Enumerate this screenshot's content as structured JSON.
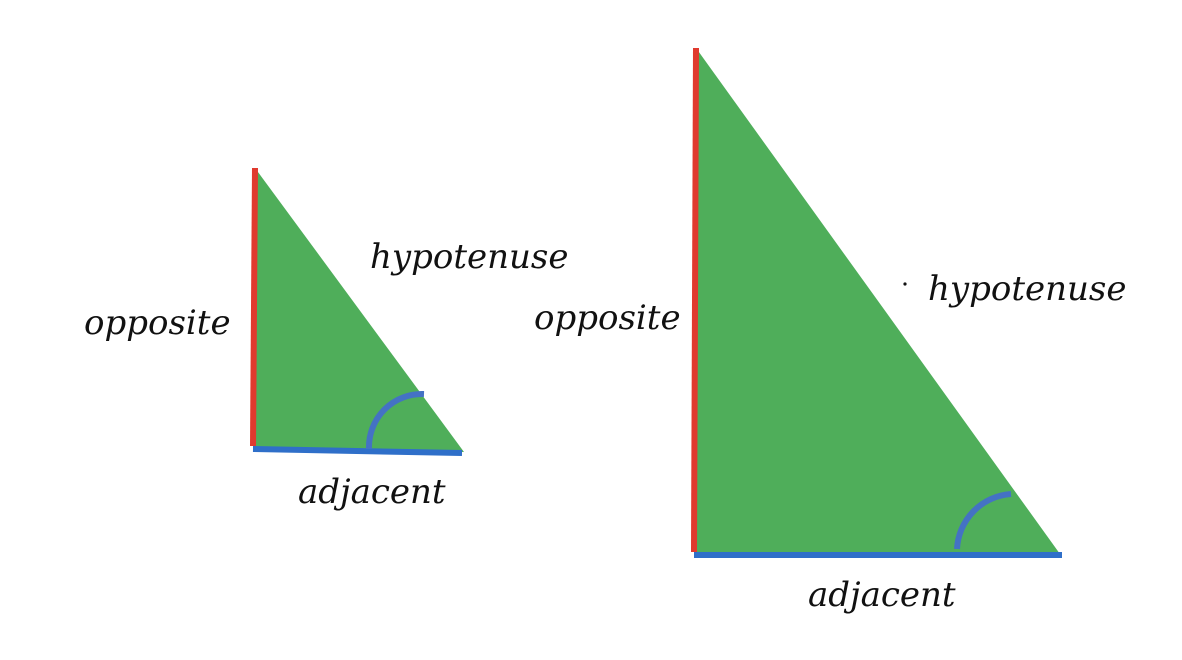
{
  "colors": {
    "triangle_fill": "#4fae5a",
    "opposite_side": "#e03a2e",
    "adjacent_side": "#2f6fc9",
    "angle_arc": "#4472c4",
    "label_text": "#111111"
  },
  "small_triangle": {
    "hypotenuse_label": "hypotenuse",
    "opposite_label": "opposite",
    "adjacent_label": "adjacent"
  },
  "large_triangle": {
    "hypotenuse_label": "hypotenuse",
    "opposite_label": "opposite",
    "adjacent_label": "adjacent"
  }
}
